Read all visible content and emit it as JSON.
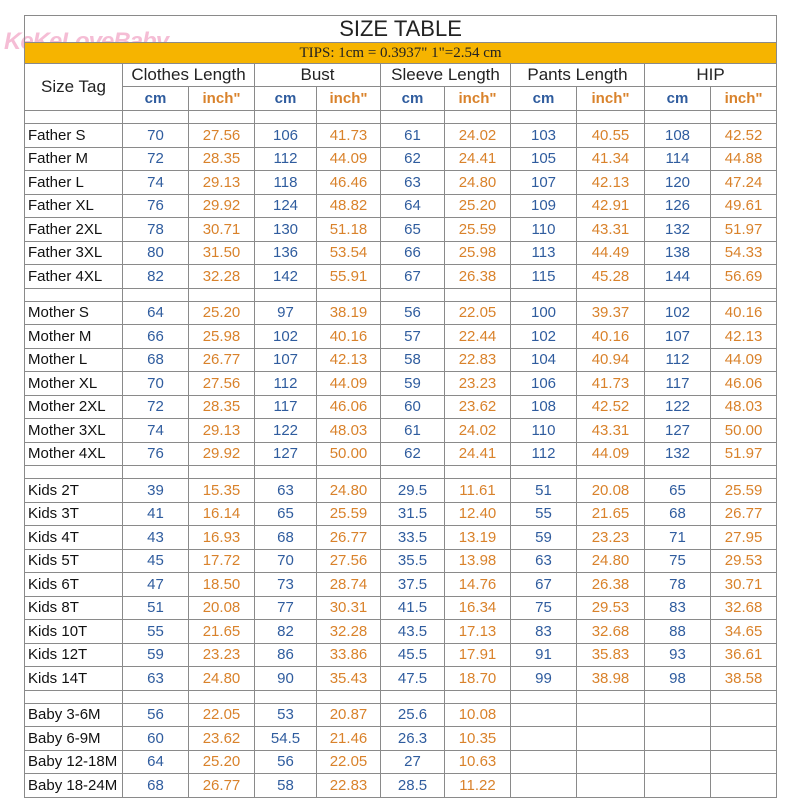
{
  "logo": "KeKeLoveBaby",
  "title": "SIZE TABLE",
  "tips": "TIPS: 1cm = 0.3937\"   1\"=2.54 cm",
  "table": {
    "header": [
      "Size Tag",
      "Clothes Length",
      "Bust",
      "Sleeve Length",
      "Pants Length",
      "HIP"
    ],
    "units": [
      "cm",
      "inch\""
    ],
    "groups": [
      {
        "rows": [
          [
            "Father S",
            "70",
            "27.56",
            "106",
            "41.73",
            "61",
            "24.02",
            "103",
            "40.55",
            "108",
            "42.52"
          ],
          [
            "Father M",
            "72",
            "28.35",
            "112",
            "44.09",
            "62",
            "24.41",
            "105",
            "41.34",
            "114",
            "44.88"
          ],
          [
            "Father L",
            "74",
            "29.13",
            "118",
            "46.46",
            "63",
            "24.80",
            "107",
            "42.13",
            "120",
            "47.24"
          ],
          [
            "Father XL",
            "76",
            "29.92",
            "124",
            "48.82",
            "64",
            "25.20",
            "109",
            "42.91",
            "126",
            "49.61"
          ],
          [
            "Father 2XL",
            "78",
            "30.71",
            "130",
            "51.18",
            "65",
            "25.59",
            "110",
            "43.31",
            "132",
            "51.97"
          ],
          [
            "Father 3XL",
            "80",
            "31.50",
            "136",
            "53.54",
            "66",
            "25.98",
            "113",
            "44.49",
            "138",
            "54.33"
          ],
          [
            "Father 4XL",
            "82",
            "32.28",
            "142",
            "55.91",
            "67",
            "26.38",
            "115",
            "45.28",
            "144",
            "56.69"
          ]
        ]
      },
      {
        "rows": [
          [
            "Mother S",
            "64",
            "25.20",
            "97",
            "38.19",
            "56",
            "22.05",
            "100",
            "39.37",
            "102",
            "40.16"
          ],
          [
            "Mother M",
            "66",
            "25.98",
            "102",
            "40.16",
            "57",
            "22.44",
            "102",
            "40.16",
            "107",
            "42.13"
          ],
          [
            "Mother L",
            "68",
            "26.77",
            "107",
            "42.13",
            "58",
            "22.83",
            "104",
            "40.94",
            "112",
            "44.09"
          ],
          [
            "Mother XL",
            "70",
            "27.56",
            "112",
            "44.09",
            "59",
            "23.23",
            "106",
            "41.73",
            "117",
            "46.06"
          ],
          [
            "Mother 2XL",
            "72",
            "28.35",
            "117",
            "46.06",
            "60",
            "23.62",
            "108",
            "42.52",
            "122",
            "48.03"
          ],
          [
            "Mother 3XL",
            "74",
            "29.13",
            "122",
            "48.03",
            "61",
            "24.02",
            "110",
            "43.31",
            "127",
            "50.00"
          ],
          [
            "Mother 4XL",
            "76",
            "29.92",
            "127",
            "50.00",
            "62",
            "24.41",
            "112",
            "44.09",
            "132",
            "51.97"
          ]
        ]
      },
      {
        "rows": [
          [
            "Kids 2T",
            "39",
            "15.35",
            "63",
            "24.80",
            "29.5",
            "11.61",
            "51",
            "20.08",
            "65",
            "25.59"
          ],
          [
            "Kids 3T",
            "41",
            "16.14",
            "65",
            "25.59",
            "31.5",
            "12.40",
            "55",
            "21.65",
            "68",
            "26.77"
          ],
          [
            "Kids 4T",
            "43",
            "16.93",
            "68",
            "26.77",
            "33.5",
            "13.19",
            "59",
            "23.23",
            "71",
            "27.95"
          ],
          [
            "Kids 5T",
            "45",
            "17.72",
            "70",
            "27.56",
            "35.5",
            "13.98",
            "63",
            "24.80",
            "75",
            "29.53"
          ],
          [
            "Kids 6T",
            "47",
            "18.50",
            "73",
            "28.74",
            "37.5",
            "14.76",
            "67",
            "26.38",
            "78",
            "30.71"
          ],
          [
            "Kids 8T",
            "51",
            "20.08",
            "77",
            "30.31",
            "41.5",
            "16.34",
            "75",
            "29.53",
            "83",
            "32.68"
          ],
          [
            "Kids 10T",
            "55",
            "21.65",
            "82",
            "32.28",
            "43.5",
            "17.13",
            "83",
            "32.68",
            "88",
            "34.65"
          ],
          [
            "Kids 12T",
            "59",
            "23.23",
            "86",
            "33.86",
            "45.5",
            "17.91",
            "91",
            "35.83",
            "93",
            "36.61"
          ],
          [
            "Kids 14T",
            "63",
            "24.80",
            "90",
            "35.43",
            "47.5",
            "18.70",
            "99",
            "38.98",
            "98",
            "38.58"
          ]
        ]
      },
      {
        "rows": [
          [
            "Baby 3-6M",
            "56",
            "22.05",
            "53",
            "20.87",
            "25.6",
            "10.08"
          ],
          [
            "Baby 6-9M",
            "60",
            "23.62",
            "54.5",
            "21.46",
            "26.3",
            "10.35"
          ],
          [
            "Baby 12-18M",
            "64",
            "25.20",
            "56",
            "22.05",
            "27",
            "10.63"
          ],
          [
            "Baby 18-24M",
            "68",
            "26.77",
            "58",
            "22.83",
            "28.5",
            "11.22"
          ]
        ]
      }
    ]
  }
}
